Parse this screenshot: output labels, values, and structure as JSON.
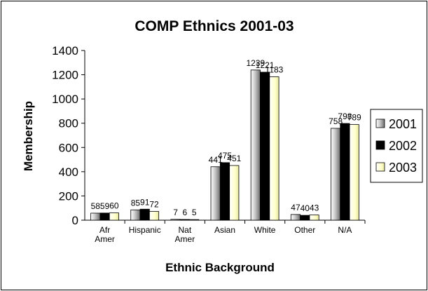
{
  "chart_data": {
    "type": "bar",
    "title": "COMP Ethnics 2001-03",
    "xlabel": "Ethnic Background",
    "ylabel": "Membership",
    "categories": [
      [
        "Afr",
        "Amer"
      ],
      [
        "Hispanic"
      ],
      [
        "Nat",
        "Amer"
      ],
      [
        "Asian"
      ],
      [
        "White"
      ],
      [
        "Other"
      ],
      [
        "N/A"
      ]
    ],
    "series": [
      {
        "name": "2001",
        "values": [
          58,
          85,
          7,
          441,
          1239,
          47,
          758
        ],
        "labels": [
          "58",
          "85",
          "7",
          "441",
          "1239",
          "47",
          "758"
        ]
      },
      {
        "name": "2002",
        "values": [
          59,
          91,
          6,
          475,
          1221,
          40,
          798
        ],
        "labels": [
          "59",
          "91",
          "6",
          "475",
          "1221",
          "40",
          "798"
        ]
      },
      {
        "name": "2003",
        "values": [
          60,
          72,
          5,
          451,
          1183,
          43,
          789
        ],
        "labels": [
          "60",
          "72",
          "5",
          "451",
          "1183",
          "43",
          "789"
        ]
      }
    ],
    "ylim": [
      0,
      1400
    ],
    "yticks": [
      "0",
      "200",
      "400",
      "600",
      "800",
      "1000",
      "1200",
      "1400"
    ],
    "grid": false,
    "legend": "right",
    "colors": {
      "2001": "#c8c8c8",
      "2002": "#000000",
      "2003": "#ffffcc"
    }
  }
}
